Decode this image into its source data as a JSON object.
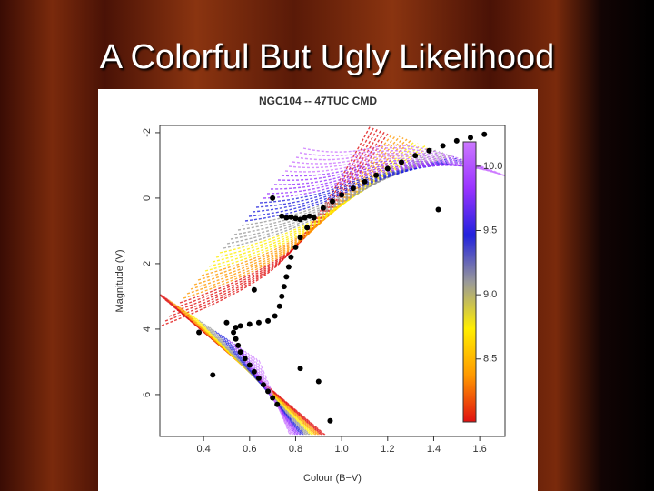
{
  "slide_title": "A Colorful But Ugly Likelihood",
  "chart_data": {
    "type": "scatter",
    "title": "NGC104 -- 47TUC CMD",
    "x_label": "Colour (B−V)",
    "y_label": "Magnitude (V)",
    "color": "#000000",
    "x": [
      0.72,
      0.7,
      0.68,
      0.66,
      0.64,
      0.62,
      0.6,
      0.58,
      0.56,
      0.55,
      0.54,
      0.53,
      0.54,
      0.56,
      0.6,
      0.64,
      0.68,
      0.71,
      0.73,
      0.74,
      0.75,
      0.76,
      0.77,
      0.78,
      0.8,
      0.82,
      0.85,
      0.88,
      0.92,
      0.96,
      1.0,
      1.05,
      1.1,
      1.15,
      1.2,
      1.26,
      1.32,
      1.38,
      1.44,
      1.5,
      1.56,
      1.62,
      0.74,
      0.76,
      0.78,
      0.8,
      0.82,
      0.84,
      0.86,
      0.7,
      0.5,
      0.44,
      0.9,
      1.42,
      0.38,
      0.82,
      0.95,
      0.62
    ],
    "values": [
      6.3,
      6.1,
      5.9,
      5.7,
      5.5,
      5.3,
      5.1,
      4.9,
      4.7,
      4.5,
      4.3,
      4.1,
      3.95,
      3.9,
      3.85,
      3.8,
      3.75,
      3.6,
      3.3,
      3.0,
      2.7,
      2.4,
      2.1,
      1.8,
      1.5,
      1.2,
      0.9,
      0.6,
      0.3,
      0.1,
      -0.1,
      -0.3,
      -0.5,
      -0.7,
      -0.9,
      -1.1,
      -1.3,
      -1.45,
      -1.6,
      -1.75,
      -1.85,
      -1.95,
      0.55,
      0.6,
      0.58,
      0.62,
      0.65,
      0.6,
      0.55,
      0.0,
      3.8,
      5.4,
      5.6,
      0.35,
      4.1,
      5.2,
      6.8,
      2.8
    ],
    "xlim": [
      0.21,
      1.71
    ],
    "xticks": [
      0.4,
      0.6,
      0.8,
      {
        "value": 1.0,
        "label": "1.0"
      },
      1.2,
      1.4,
      1.6
    ],
    "ylim": [
      -2.22,
      7.28
    ],
    "y_inverted": true,
    "yticks": [
      -2,
      0,
      2,
      4,
      6
    ],
    "colorbar": {
      "lim": [
        8.01,
        10.19
      ],
      "colors": [
        "#e01010",
        "#ff9900",
        "#ffee00",
        "#999999",
        "#2222dd",
        "#9933ff",
        "#cc77ff"
      ],
      "ticks": [
        {
          "value": 10.0,
          "label": "10.0"
        },
        9.5,
        {
          "value": 9.0,
          "label": "9.0"
        },
        8.5
      ]
    }
  }
}
